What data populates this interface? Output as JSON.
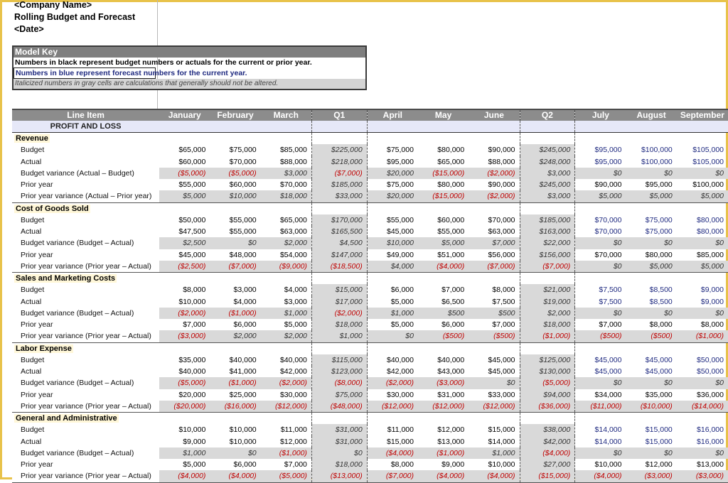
{
  "header": {
    "company": "<Company Name>",
    "title": "Rolling Budget and Forecast",
    "date": "<Date>"
  },
  "model_key": {
    "title": "Model Key",
    "line_black": "Numbers in black represent budget numbers or actuals for the current or prior year.",
    "line_blue": "Numbers in blue represent forecast numbers for the current year.",
    "line_gray": "Italicized numbers in gray cells are calculations that generally should not be altered."
  },
  "table": {
    "columns": [
      "Line Item",
      "January",
      "February",
      "March",
      "Q1",
      "April",
      "May",
      "June",
      "Q2",
      "July",
      "August",
      "September"
    ],
    "pl_label": "PROFIT AND LOSS",
    "sections": [
      {
        "name": "Revenue",
        "rows": [
          {
            "label": "Budget",
            "values": [
              "$65,000",
              "$75,000",
              "$85,000",
              "$225,000",
              "$75,000",
              "$80,000",
              "$90,000",
              "$245,000",
              "$95,000",
              "$100,000",
              "$105,000"
            ]
          },
          {
            "label": "Actual",
            "values": [
              "$60,000",
              "$70,000",
              "$88,000",
              "$218,000",
              "$95,000",
              "$65,000",
              "$88,000",
              "$248,000",
              "$95,000",
              "$100,000",
              "$105,000"
            ]
          },
          {
            "label": "Budget variance (Actual – Budget)",
            "values": [
              "($5,000)",
              "($5,000)",
              "$3,000",
              "($7,000)",
              "$20,000",
              "($15,000)",
              "($2,000)",
              "$3,000",
              "$0",
              "$0",
              "$0"
            ]
          },
          {
            "label": "Prior year",
            "values": [
              "$55,000",
              "$60,000",
              "$70,000",
              "$185,000",
              "$75,000",
              "$80,000",
              "$90,000",
              "$245,000",
              "$90,000",
              "$95,000",
              "$100,000"
            ]
          },
          {
            "label": "Prior year variance (Actual – Prior year)",
            "values": [
              "$5,000",
              "$10,000",
              "$18,000",
              "$33,000",
              "$20,000",
              "($15,000)",
              "($2,000)",
              "$3,000",
              "$5,000",
              "$5,000",
              "$5,000"
            ]
          }
        ]
      },
      {
        "name": "Cost of Goods Sold",
        "rows": [
          {
            "label": "Budget",
            "values": [
              "$50,000",
              "$55,000",
              "$65,000",
              "$170,000",
              "$55,000",
              "$60,000",
              "$70,000",
              "$185,000",
              "$70,000",
              "$75,000",
              "$80,000"
            ]
          },
          {
            "label": "Actual",
            "values": [
              "$47,500",
              "$55,000",
              "$63,000",
              "$165,500",
              "$45,000",
              "$55,000",
              "$63,000",
              "$163,000",
              "$70,000",
              "$75,000",
              "$80,000"
            ]
          },
          {
            "label": "Budget variance (Budget – Actual)",
            "values": [
              "$2,500",
              "$0",
              "$2,000",
              "$4,500",
              "$10,000",
              "$5,000",
              "$7,000",
              "$22,000",
              "$0",
              "$0",
              "$0"
            ]
          },
          {
            "label": "Prior year",
            "values": [
              "$45,000",
              "$48,000",
              "$54,000",
              "$147,000",
              "$49,000",
              "$51,000",
              "$56,000",
              "$156,000",
              "$70,000",
              "$80,000",
              "$85,000"
            ]
          },
          {
            "label": "Prior year variance (Prior year – Actual)",
            "values": [
              "($2,500)",
              "($7,000)",
              "($9,000)",
              "($18,500)",
              "$4,000",
              "($4,000)",
              "($7,000)",
              "($7,000)",
              "$0",
              "$5,000",
              "$5,000"
            ]
          }
        ]
      },
      {
        "name": "Sales and Marketing Costs",
        "rows": [
          {
            "label": "Budget",
            "values": [
              "$8,000",
              "$3,000",
              "$4,000",
              "$15,000",
              "$6,000",
              "$7,000",
              "$8,000",
              "$21,000",
              "$7,500",
              "$8,500",
              "$9,000"
            ]
          },
          {
            "label": "Actual",
            "values": [
              "$10,000",
              "$4,000",
              "$3,000",
              "$17,000",
              "$5,000",
              "$6,500",
              "$7,500",
              "$19,000",
              "$7,500",
              "$8,500",
              "$9,000"
            ]
          },
          {
            "label": "Budget variance (Budget – Actual)",
            "values": [
              "($2,000)",
              "($1,000)",
              "$1,000",
              "($2,000)",
              "$1,000",
              "$500",
              "$500",
              "$2,000",
              "$0",
              "$0",
              "$0"
            ]
          },
          {
            "label": "Prior year",
            "values": [
              "$7,000",
              "$6,000",
              "$5,000",
              "$18,000",
              "$5,000",
              "$6,000",
              "$7,000",
              "$18,000",
              "$7,000",
              "$8,000",
              "$8,000"
            ]
          },
          {
            "label": "Prior year variance (Prior year – Actual)",
            "values": [
              "($3,000)",
              "$2,000",
              "$2,000",
              "$1,000",
              "$0",
              "($500)",
              "($500)",
              "($1,000)",
              "($500)",
              "($500)",
              "($1,000)"
            ]
          }
        ]
      },
      {
        "name": "Labor Expense",
        "rows": [
          {
            "label": "Budget",
            "values": [
              "$35,000",
              "$40,000",
              "$40,000",
              "$115,000",
              "$40,000",
              "$40,000",
              "$45,000",
              "$125,000",
              "$45,000",
              "$45,000",
              "$50,000"
            ]
          },
          {
            "label": "Actual",
            "values": [
              "$40,000",
              "$41,000",
              "$42,000",
              "$123,000",
              "$42,000",
              "$43,000",
              "$45,000",
              "$130,000",
              "$45,000",
              "$45,000",
              "$50,000"
            ]
          },
          {
            "label": "Budget variance (Budget – Actual)",
            "values": [
              "($5,000)",
              "($1,000)",
              "($2,000)",
              "($8,000)",
              "($2,000)",
              "($3,000)",
              "$0",
              "($5,000)",
              "$0",
              "$0",
              "$0"
            ]
          },
          {
            "label": "Prior year",
            "values": [
              "$20,000",
              "$25,000",
              "$30,000",
              "$75,000",
              "$30,000",
              "$31,000",
              "$33,000",
              "$94,000",
              "$34,000",
              "$35,000",
              "$36,000"
            ]
          },
          {
            "label": "Prior year variance (Prior year – Actual)",
            "values": [
              "($20,000)",
              "($16,000)",
              "($12,000)",
              "($48,000)",
              "($12,000)",
              "($12,000)",
              "($12,000)",
              "($36,000)",
              "($11,000)",
              "($10,000)",
              "($14,000)"
            ]
          }
        ]
      },
      {
        "name": "General and Administrative",
        "rows": [
          {
            "label": "Budget",
            "values": [
              "$10,000",
              "$10,000",
              "$11,000",
              "$31,000",
              "$11,000",
              "$12,000",
              "$15,000",
              "$38,000",
              "$14,000",
              "$15,000",
              "$16,000"
            ]
          },
          {
            "label": "Actual",
            "values": [
              "$9,000",
              "$10,000",
              "$12,000",
              "$31,000",
              "$15,000",
              "$13,000",
              "$14,000",
              "$42,000",
              "$14,000",
              "$15,000",
              "$16,000"
            ]
          },
          {
            "label": "Budget variance (Budget – Actual)",
            "values": [
              "$1,000",
              "$0",
              "($1,000)",
              "$0",
              "($4,000)",
              "($1,000)",
              "$1,000",
              "($4,000)",
              "$0",
              "$0",
              "$0"
            ]
          },
          {
            "label": "Prior year",
            "values": [
              "$5,000",
              "$6,000",
              "$7,000",
              "$18,000",
              "$8,000",
              "$9,000",
              "$10,000",
              "$27,000",
              "$10,000",
              "$12,000",
              "$13,000"
            ]
          },
          {
            "label": "Prior year variance (Prior year – Actual)",
            "values": [
              "($4,000)",
              "($4,000)",
              "($5,000)",
              "($13,000)",
              "($7,000)",
              "($4,000)",
              "($4,000)",
              "($15,000)",
              "($4,000)",
              "($3,000)",
              "($3,000)"
            ]
          }
        ]
      }
    ]
  }
}
